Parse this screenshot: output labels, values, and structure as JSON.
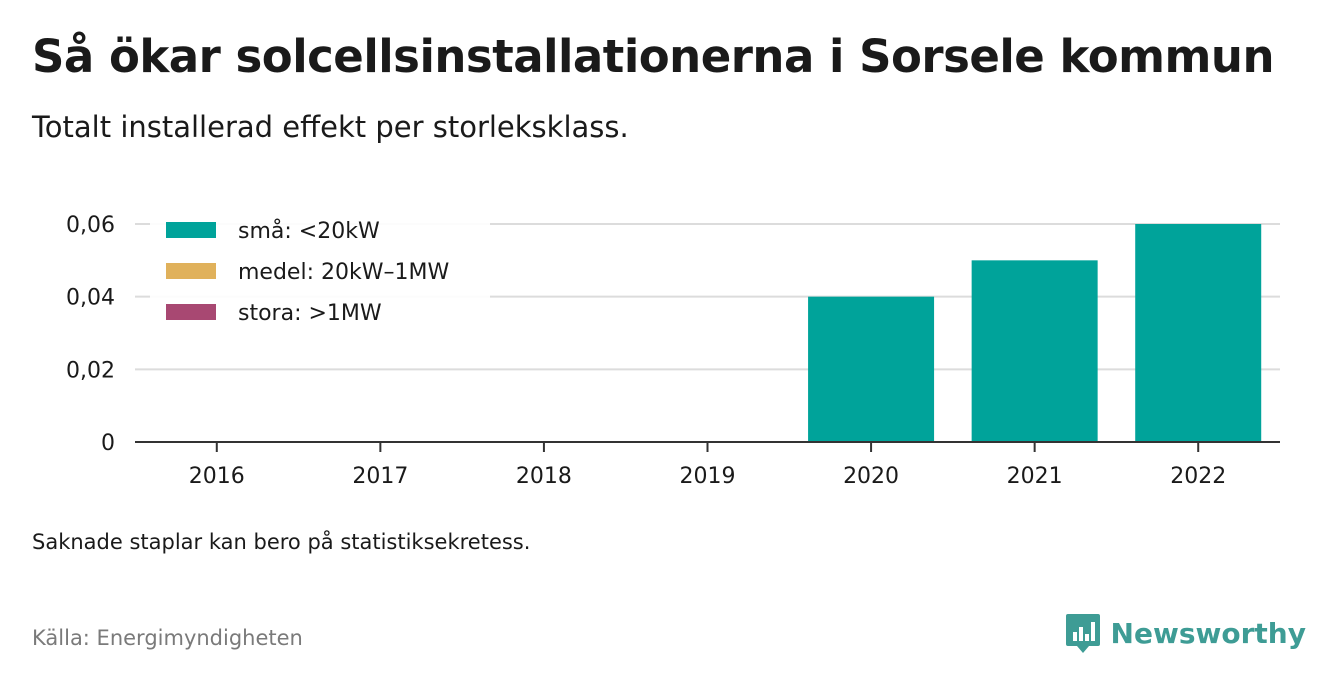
{
  "header": {
    "title": "Så ökar solcellsinstallationerna i Sorsele kommun",
    "subtitle": "Totalt installerad effekt per storleksklass."
  },
  "footer": {
    "note": "Saknade staplar kan bero på statistiksekretess.",
    "source": "Källa: Energimyndigheten",
    "brand": "Newsworthy",
    "brand_icon": "newsworthy-logo-icon",
    "brand_color": "#3e9c95"
  },
  "chart_data": {
    "type": "bar",
    "stacked": true,
    "categories": [
      "2016",
      "2017",
      "2018",
      "2019",
      "2020",
      "2021",
      "2022"
    ],
    "series": [
      {
        "name": "små: <20kW",
        "color": "#00a39a",
        "values": [
          0,
          0,
          0,
          0,
          0.04,
          0.05,
          0.06
        ]
      },
      {
        "name": "medel: 20kW–1MW",
        "color": "#e0b15b",
        "values": [
          0,
          0,
          0,
          0,
          0,
          0,
          0
        ]
      },
      {
        "name": "stora: >1MW",
        "color": "#a84872",
        "values": [
          0,
          0,
          0,
          0,
          0,
          0,
          0
        ]
      }
    ],
    "yticks": [
      0,
      0.02,
      0.04,
      0.06
    ],
    "ytick_labels": [
      "0",
      "0,02",
      "0,04",
      "0,06"
    ],
    "ylim": [
      0,
      0.06
    ],
    "grid": true,
    "legend_position": "top-left"
  }
}
